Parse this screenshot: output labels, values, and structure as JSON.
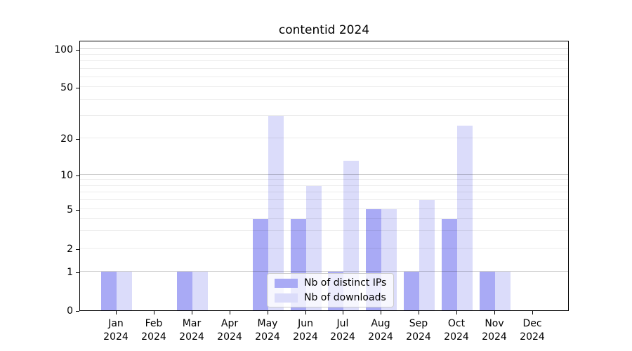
{
  "chart_data": {
    "type": "bar",
    "title": "contentid 2024",
    "categories": [
      "Jan",
      "Feb",
      "Mar",
      "Apr",
      "May",
      "Jun",
      "Jul",
      "Aug",
      "Sep",
      "Oct",
      "Nov",
      "Dec"
    ],
    "category_year": "2024",
    "series": [
      {
        "name": "Nb of distinct IPs",
        "color": "#a9aaf5",
        "values": [
          1,
          0,
          1,
          0,
          4,
          4,
          1,
          5,
          1,
          4,
          1,
          0
        ]
      },
      {
        "name": "Nb of downloads",
        "color": "#dbdcfa",
        "values": [
          1,
          0,
          1,
          0,
          30,
          8,
          13,
          5,
          6,
          25,
          1,
          0
        ]
      }
    ],
    "y_axis": {
      "scale": "symlog",
      "ticks": [
        0,
        1,
        2,
        5,
        10,
        20,
        50,
        100
      ],
      "minor_ticks": [
        3,
        4,
        6,
        7,
        8,
        9,
        30,
        40,
        60,
        70,
        80,
        90
      ],
      "range": [
        0,
        100
      ]
    },
    "x_axis": {
      "label_lines": 2
    },
    "legend_position": "lower center",
    "grid": true
  },
  "colors": {
    "major_gridline": "rgba(0,0,0,0.20)",
    "minor_gridline": "rgba(0,0,0,0.075)",
    "axis": "#000000",
    "background": "#ffffff"
  }
}
